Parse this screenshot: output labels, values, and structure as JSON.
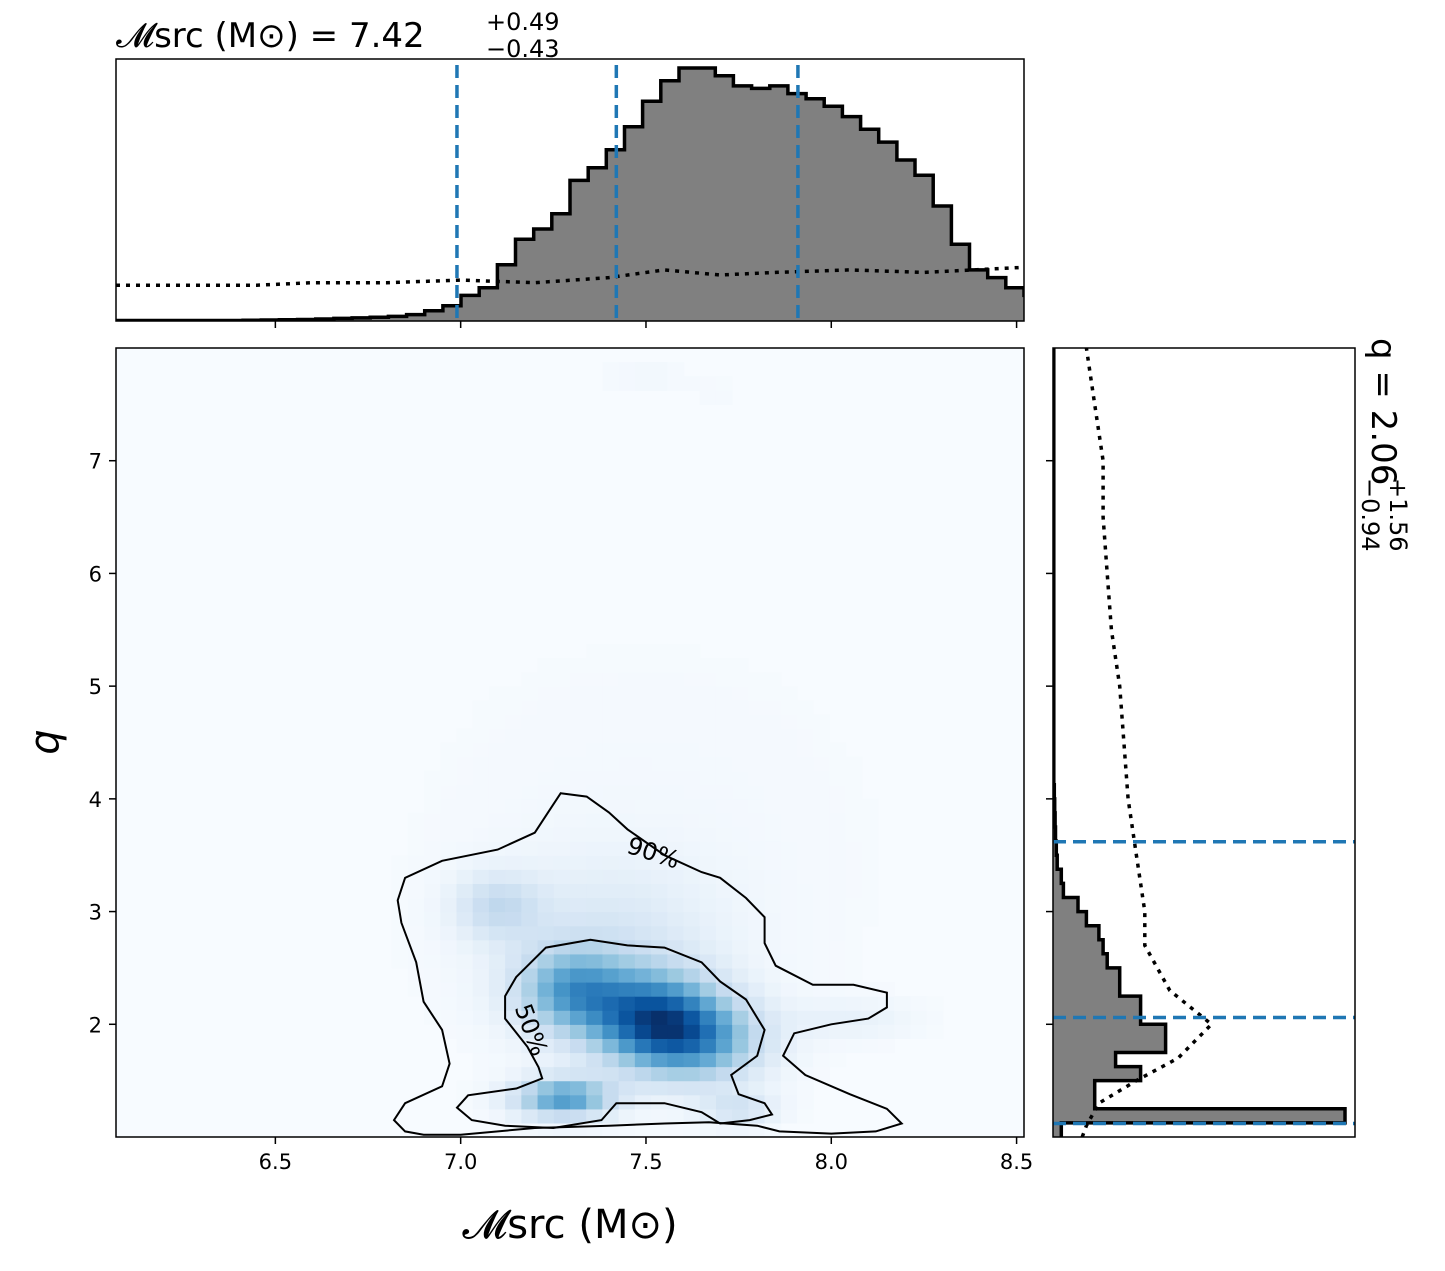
{
  "chart_data": [
    {
      "type": "heatmap",
      "panel": "joint",
      "xlabel": "𝓜src (M⊙)",
      "ylabel": "q",
      "xlim": [
        6.07,
        8.52
      ],
      "ylim": [
        1.0,
        8.0
      ],
      "xticks": [
        6.5,
        7.0,
        7.5,
        8.0,
        8.5
      ],
      "xtick_labels": [
        "6.5",
        "7.0",
        "7.5",
        "8.0",
        "8.5"
      ],
      "yticks": [
        2,
        3,
        4,
        5,
        6,
        7
      ],
      "ytick_labels": [
        "2",
        "3",
        "4",
        "5",
        "6",
        "7"
      ],
      "colormap": "Blues",
      "density_peaks": [
        {
          "x": 7.52,
          "y": 2.05,
          "sx": 0.12,
          "sy": 0.28,
          "w": 1.0
        },
        {
          "x": 7.3,
          "y": 2.3,
          "sx": 0.1,
          "sy": 0.25,
          "w": 0.65
        },
        {
          "x": 7.65,
          "y": 1.85,
          "sx": 0.12,
          "sy": 0.25,
          "w": 0.6
        },
        {
          "x": 7.28,
          "y": 1.35,
          "sx": 0.09,
          "sy": 0.12,
          "w": 0.8
        },
        {
          "x": 7.1,
          "y": 3.05,
          "sx": 0.08,
          "sy": 0.2,
          "w": 0.3
        },
        {
          "x": 7.75,
          "y": 1.25,
          "sx": 0.07,
          "sy": 0.1,
          "w": 0.25
        },
        {
          "x": 8.05,
          "y": 2.05,
          "sx": 0.12,
          "sy": 0.12,
          "w": 0.1
        },
        {
          "x": 7.4,
          "y": 2.7,
          "sx": 0.2,
          "sy": 0.5,
          "w": 0.2
        },
        {
          "x": 7.5,
          "y": 7.75,
          "sx": 0.08,
          "sy": 0.12,
          "w": 0.04
        },
        {
          "x": 7.7,
          "y": 7.6,
          "sx": 0.06,
          "sy": 0.1,
          "w": 0.02
        },
        {
          "x": 7.5,
          "y": 3.5,
          "sx": 0.5,
          "sy": 1.5,
          "w": 0.03
        }
      ],
      "contours": [
        {
          "label": "90%",
          "label_position": [
            7.52,
            3.52
          ],
          "points": [
            [
              7.27,
              4.05
            ],
            [
              7.34,
              4.02
            ],
            [
              7.4,
              3.88
            ],
            [
              7.45,
              3.73
            ],
            [
              7.55,
              3.5
            ],
            [
              7.65,
              3.35
            ],
            [
              7.7,
              3.3
            ],
            [
              7.77,
              3.12
            ],
            [
              7.82,
              2.95
            ],
            [
              7.82,
              2.72
            ],
            [
              7.85,
              2.52
            ],
            [
              7.95,
              2.35
            ],
            [
              8.06,
              2.35
            ],
            [
              8.15,
              2.28
            ],
            [
              8.15,
              2.15
            ],
            [
              8.1,
              2.05
            ],
            [
              8.0,
              2.0
            ],
            [
              7.9,
              1.92
            ],
            [
              7.87,
              1.72
            ],
            [
              7.93,
              1.55
            ],
            [
              8.05,
              1.38
            ],
            [
              8.15,
              1.25
            ],
            [
              8.19,
              1.12
            ],
            [
              8.12,
              1.05
            ],
            [
              8.0,
              1.03
            ],
            [
              7.86,
              1.05
            ],
            [
              7.8,
              1.1
            ],
            [
              7.67,
              1.13
            ],
            [
              7.55,
              1.12
            ],
            [
              7.4,
              1.1
            ],
            [
              7.2,
              1.08
            ],
            [
              7.0,
              1.02
            ],
            [
              6.9,
              1.02
            ],
            [
              6.85,
              1.05
            ],
            [
              6.82,
              1.15
            ],
            [
              6.85,
              1.3
            ],
            [
              6.95,
              1.45
            ],
            [
              6.97,
              1.65
            ],
            [
              6.95,
              1.95
            ],
            [
              6.9,
              2.2
            ],
            [
              6.88,
              2.55
            ],
            [
              6.84,
              2.9
            ],
            [
              6.83,
              3.1
            ],
            [
              6.85,
              3.3
            ],
            [
              6.95,
              3.45
            ],
            [
              7.1,
              3.55
            ],
            [
              7.2,
              3.7
            ],
            [
              7.24,
              3.9
            ],
            [
              7.27,
              4.05
            ]
          ]
        },
        {
          "label": "50%",
          "label_position": [
            7.19,
            1.95
          ],
          "points": [
            [
              7.15,
              2.42
            ],
            [
              7.23,
              2.68
            ],
            [
              7.35,
              2.75
            ],
            [
              7.45,
              2.7
            ],
            [
              7.55,
              2.68
            ],
            [
              7.65,
              2.55
            ],
            [
              7.7,
              2.38
            ],
            [
              7.77,
              2.22
            ],
            [
              7.82,
              1.95
            ],
            [
              7.8,
              1.72
            ],
            [
              7.73,
              1.55
            ],
            [
              7.75,
              1.38
            ],
            [
              7.82,
              1.3
            ],
            [
              7.84,
              1.2
            ],
            [
              7.78,
              1.15
            ],
            [
              7.7,
              1.12
            ],
            [
              7.65,
              1.22
            ],
            [
              7.55,
              1.3
            ],
            [
              7.42,
              1.3
            ],
            [
              7.38,
              1.15
            ],
            [
              7.25,
              1.08
            ],
            [
              7.12,
              1.1
            ],
            [
              7.03,
              1.15
            ],
            [
              6.99,
              1.26
            ],
            [
              7.02,
              1.37
            ],
            [
              7.15,
              1.43
            ],
            [
              7.22,
              1.52
            ],
            [
              7.21,
              1.62
            ],
            [
              7.18,
              1.8
            ],
            [
              7.12,
              2.05
            ],
            [
              7.12,
              2.25
            ],
            [
              7.15,
              2.42
            ]
          ]
        }
      ]
    },
    {
      "type": "step",
      "panel": "top-marginal",
      "title_main": "𝓜src (M⊙) = 7.42",
      "title_sup": "+0.49",
      "title_sub": "−0.43",
      "xlim": [
        6.07,
        8.52
      ],
      "bins_x_start": 6.07,
      "bin_width": 0.049,
      "values": [
        0.002,
        0.002,
        0.002,
        0.002,
        0.002,
        0.002,
        0.002,
        0.003,
        0.004,
        0.005,
        0.006,
        0.008,
        0.01,
        0.012,
        0.015,
        0.018,
        0.025,
        0.04,
        0.06,
        0.1,
        0.13,
        0.22,
        0.32,
        0.36,
        0.42,
        0.55,
        0.6,
        0.67,
        0.76,
        0.86,
        0.94,
        0.99,
        0.99,
        0.96,
        0.92,
        0.91,
        0.92,
        0.89,
        0.87,
        0.84,
        0.8,
        0.75,
        0.7,
        0.63,
        0.57,
        0.45,
        0.3,
        0.2,
        0.17,
        0.13,
        0.1,
        0.08,
        0.06,
        0.04,
        0.02,
        0.01,
        0.005,
        0.003,
        0.002,
        0.002
      ],
      "prior_x": [
        6.07,
        6.45,
        6.6,
        6.8,
        7.0,
        7.2,
        7.4,
        7.55,
        7.7,
        7.85,
        8.05,
        8.25,
        8.52
      ],
      "prior_values": [
        0.14,
        0.14,
        0.15,
        0.15,
        0.16,
        0.15,
        0.17,
        0.2,
        0.18,
        0.19,
        0.2,
        0.19,
        0.21
      ],
      "quantile_lines": [
        6.99,
        7.42,
        7.91
      ],
      "line_color": "#000000",
      "fill_color": "#808080",
      "quantile_color": "#1f77b4"
    },
    {
      "type": "step",
      "panel": "right-marginal",
      "title_main": "q = 2.06",
      "title_sup": "+1.56",
      "title_sub": "−0.94",
      "ylim": [
        1.0,
        8.0
      ],
      "bins_y_start": 1.0,
      "bin_width": 0.125,
      "values": [
        0.02,
        0.7,
        0.1,
        0.1,
        0.21,
        0.15,
        0.27,
        0.27,
        0.21,
        0.21,
        0.16,
        0.16,
        0.13,
        0.12,
        0.11,
        0.08,
        0.06,
        0.025,
        0.02,
        0.01,
        0.008,
        0.006,
        0.005,
        0.004,
        0.003,
        0.002,
        0.002,
        0.002,
        0.002,
        0.002,
        0.002,
        0.002,
        0.002,
        0.002,
        0.002,
        0.002,
        0.002,
        0.002,
        0.002,
        0.002,
        0.002,
        0.002,
        0.002,
        0.002,
        0.002,
        0.002,
        0.002,
        0.002,
        0.002,
        0.002,
        0.002,
        0.002,
        0.002,
        0.002,
        0.002,
        0.002
      ],
      "prior_y": [
        1.0,
        1.1,
        1.3,
        1.5,
        1.7,
        2.0,
        2.3,
        2.7,
        3.0,
        3.5,
        4.0,
        4.5,
        5.0,
        5.5,
        6.0,
        6.5,
        7.0,
        7.5,
        8.0
      ],
      "prior_values": [
        0.07,
        0.08,
        0.11,
        0.2,
        0.3,
        0.38,
        0.28,
        0.22,
        0.22,
        0.2,
        0.18,
        0.17,
        0.16,
        0.14,
        0.13,
        0.12,
        0.12,
        0.1,
        0.08
      ],
      "quantile_lines": [
        1.12,
        2.06,
        3.62
      ],
      "line_color": "#000000",
      "fill_color": "#808080",
      "quantile_color": "#1f77b4"
    }
  ]
}
